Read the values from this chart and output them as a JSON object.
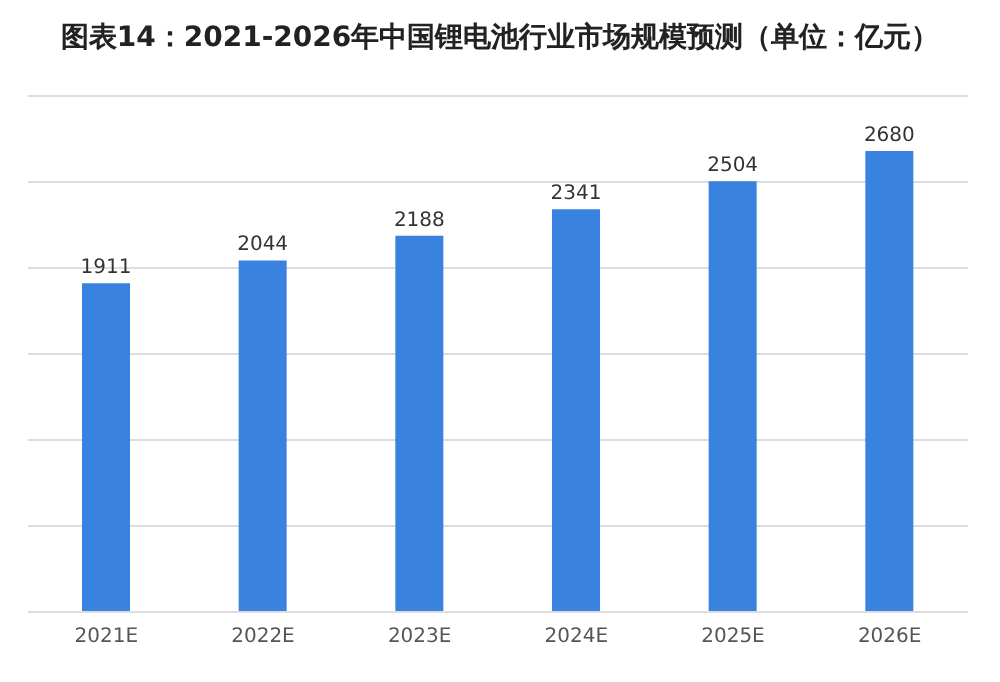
{
  "chart_data": {
    "type": "bar",
    "title": "图表14：2021-2026年中国锂电池行业市场规模预测（单位：亿元）",
    "categories": [
      "2021E",
      "2022E",
      "2023E",
      "2024E",
      "2025E",
      "2026E"
    ],
    "values": [
      1911,
      2044,
      2188,
      2341,
      2504,
      2680
    ],
    "color": "#3a82e0",
    "ylim": [
      0,
      3000
    ],
    "tick_labels": "x",
    "grid": "y",
    "data_labels": true
  }
}
